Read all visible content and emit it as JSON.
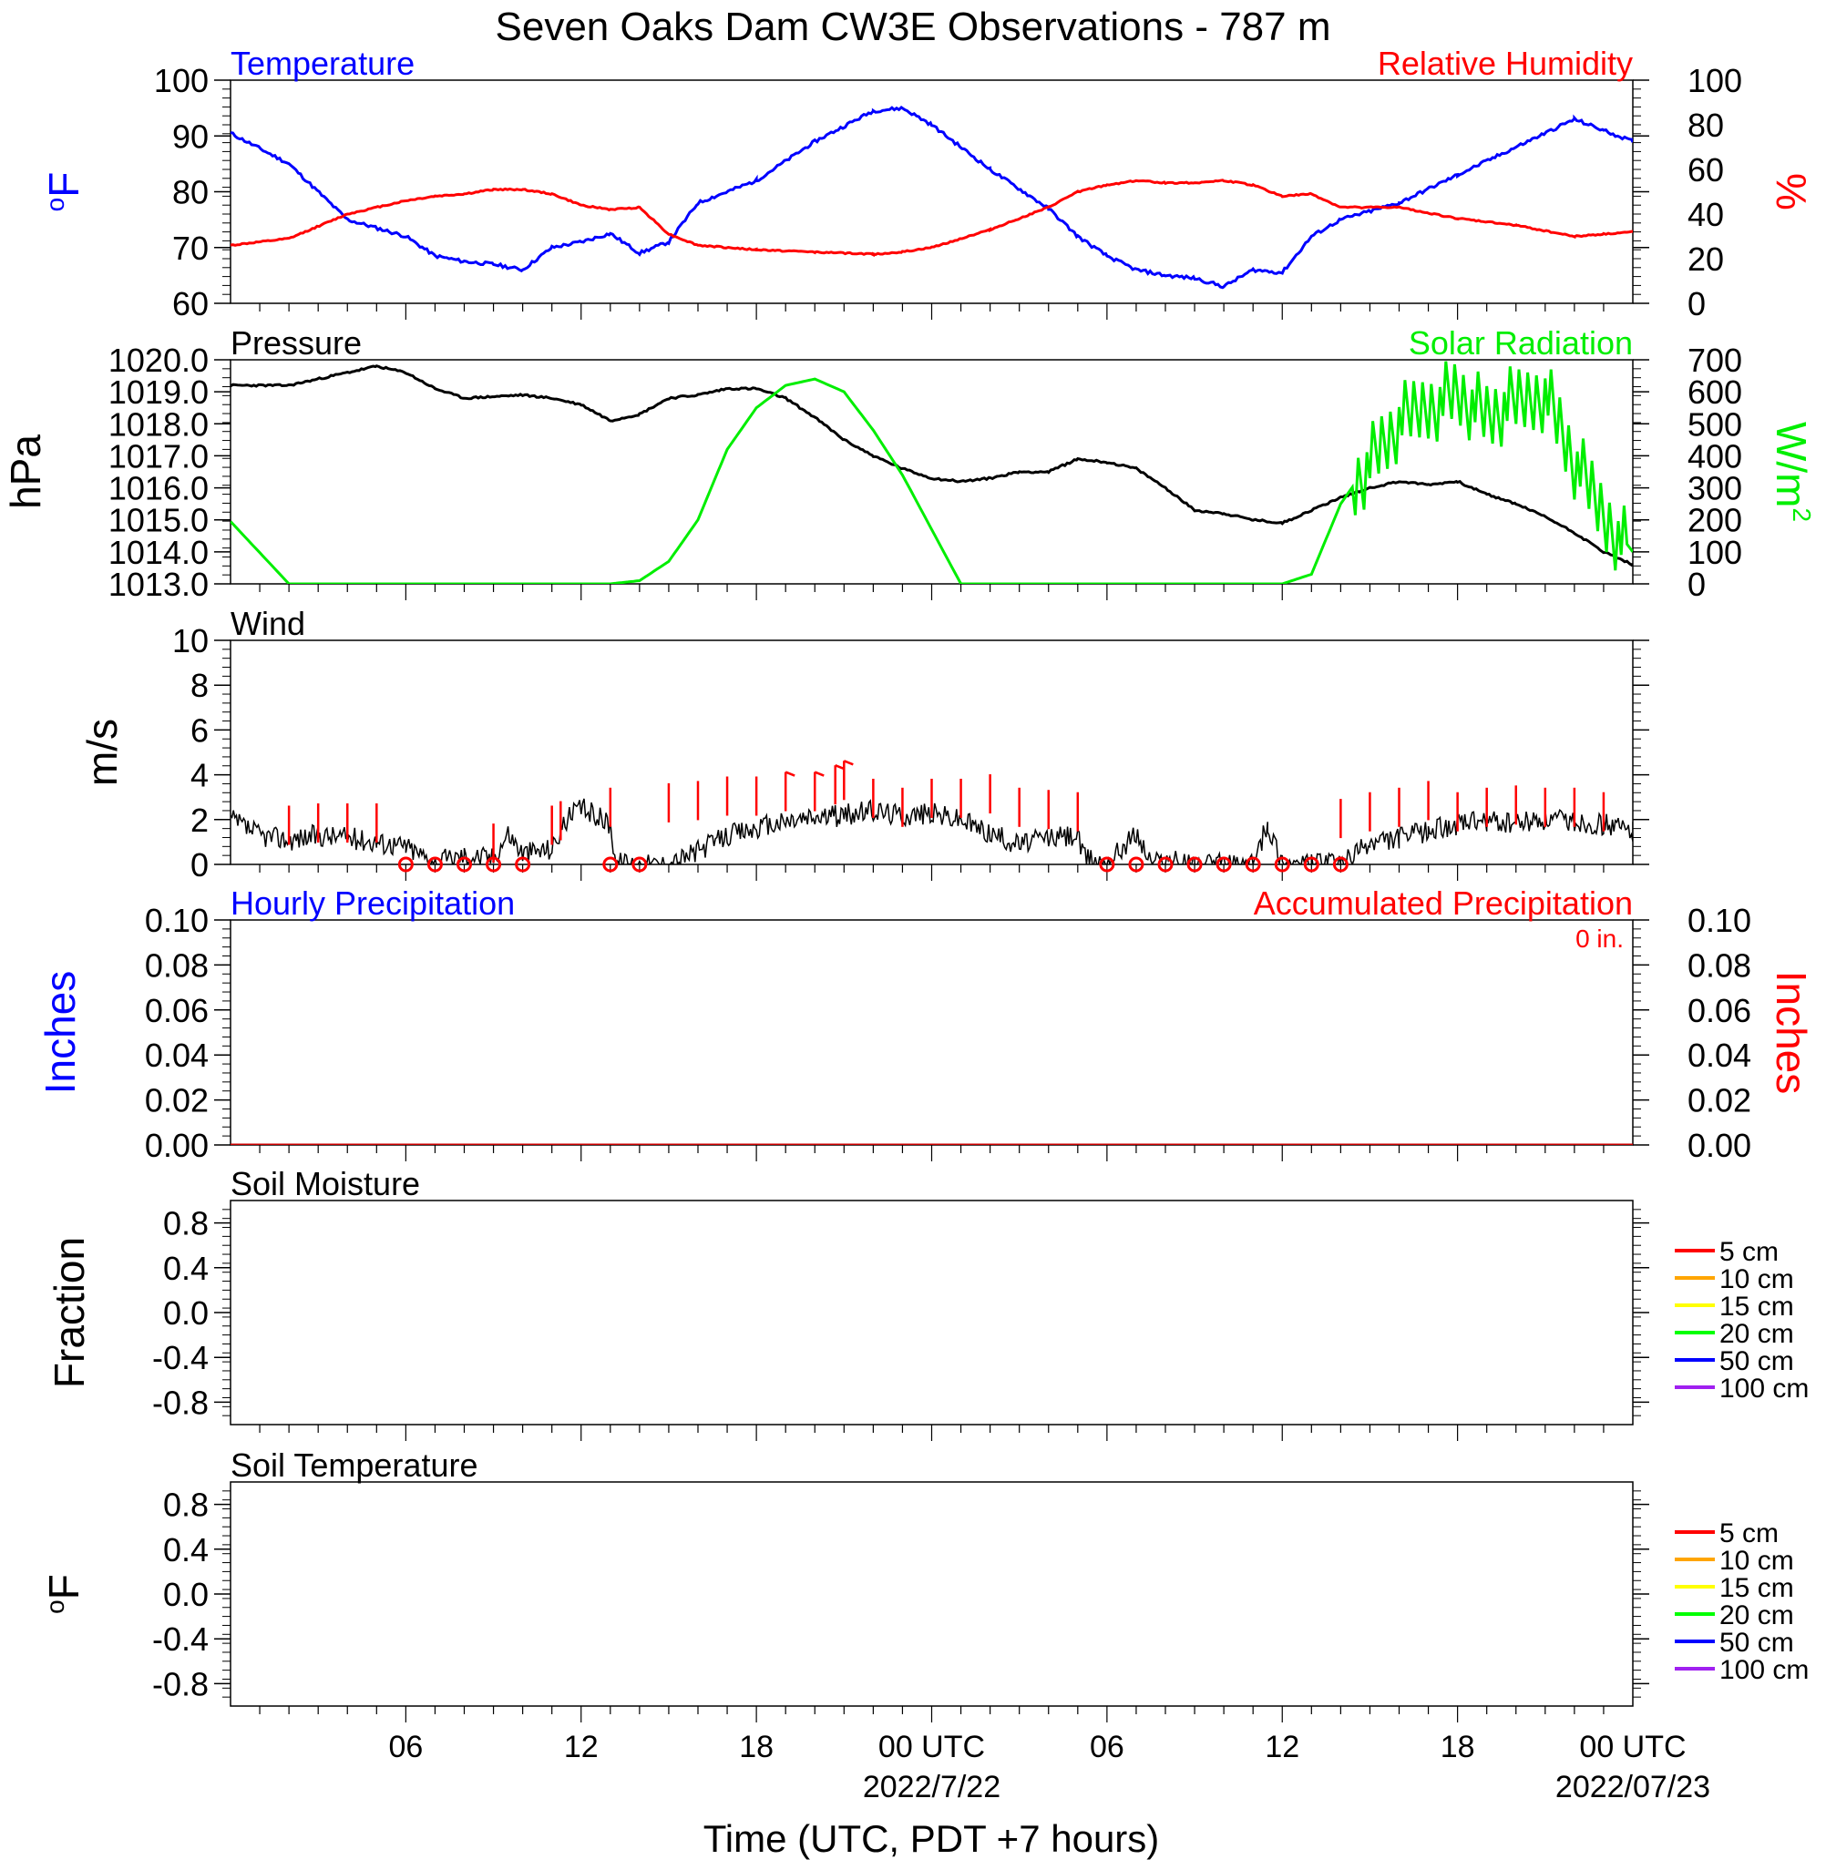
{
  "title": "Seven Oaks Dam CW3E Observations - 787 m",
  "xaxis": {
    "label": "Time (UTC, PDT +7 hours)",
    "tick_labels": [
      "06",
      "12",
      "18",
      "00 UTC",
      "06",
      "12",
      "18",
      "00 UTC"
    ],
    "date_labels": [
      "2022/7/22",
      "2022/07/23"
    ]
  },
  "colors": {
    "blue": "#0000ff",
    "red": "#ff0000",
    "green": "#00ee00",
    "black": "#000000"
  },
  "chart_data": [
    {
      "type": "line",
      "panel": "temperature_humidity",
      "left_title": "Temperature",
      "right_title": "Relative Humidity",
      "left_unit": "oF",
      "right_unit": "%",
      "ylim_left": [
        60,
        100
      ],
      "ylim_right": [
        0,
        100
      ],
      "left_ticks": [
        "60",
        "70",
        "80",
        "90",
        "100"
      ],
      "right_ticks": [
        "0",
        "20",
        "40",
        "60",
        "80",
        "100"
      ],
      "x_hours": [
        0,
        2,
        4,
        6,
        7,
        8,
        9,
        10,
        11,
        12,
        13,
        14,
        15,
        16,
        18,
        20,
        22,
        23,
        24,
        26,
        28,
        29,
        30,
        31,
        32,
        33,
        34,
        35,
        36,
        37,
        38,
        40,
        42,
        44,
        46,
        47,
        48
      ],
      "series": [
        {
          "name": "Temperature",
          "color": "#0000ff",
          "axis": "left",
          "values": [
            90.5,
            85,
            75,
            72,
            68.5,
            67.5,
            67,
            66,
            70,
            71,
            72.5,
            69,
            71,
            78,
            82,
            89,
            94.5,
            95,
            92,
            84,
            77,
            72,
            68.5,
            66,
            65,
            64.5,
            63,
            66,
            65.5,
            72,
            75,
            78,
            83,
            88,
            93,
            91,
            89
          ]
        },
        {
          "name": "Relative Humidity",
          "color": "#ff0000",
          "axis": "right",
          "values": [
            26,
            29,
            40,
            46,
            48,
            49,
            51,
            51,
            49,
            44,
            42,
            43,
            31,
            26,
            24,
            23,
            22,
            23,
            25,
            33,
            43,
            50,
            53,
            55,
            54,
            54,
            55,
            53,
            48,
            49,
            43,
            43,
            38,
            35,
            30,
            31,
            32
          ]
        }
      ]
    },
    {
      "type": "line",
      "panel": "pressure_solar",
      "left_title": "Pressure",
      "right_title": "Solar Radiation",
      "left_unit": "hPa",
      "right_unit": "W/m2",
      "ylim_left": [
        1013.0,
        1020.0
      ],
      "ylim_right": [
        0,
        700
      ],
      "left_ticks": [
        "1013.0",
        "1014.0",
        "1015.0",
        "1016.0",
        "1017.0",
        "1018.0",
        "1019.0",
        "1020.0"
      ],
      "right_ticks": [
        "0",
        "100",
        "200",
        "300",
        "400",
        "500",
        "600",
        "700"
      ],
      "x_hours": [
        0,
        2,
        4,
        5,
        6,
        7,
        8,
        10,
        11,
        12,
        13,
        14,
        15,
        16,
        17,
        18,
        19,
        20,
        21,
        22,
        23,
        24,
        25,
        26,
        27,
        28,
        29,
        30,
        31,
        32,
        33,
        34,
        35,
        36,
        37,
        38,
        39,
        40,
        41,
        42,
        43,
        44,
        45,
        46,
        47,
        48
      ],
      "series": [
        {
          "name": "Pressure",
          "color": "#000000",
          "axis": "left",
          "values": [
            1019.2,
            1019.2,
            1019.6,
            1019.8,
            1019.6,
            1019.1,
            1018.8,
            1018.9,
            1018.8,
            1018.6,
            1018.1,
            1018.3,
            1018.8,
            1018.9,
            1019.1,
            1019.1,
            1018.8,
            1018.2,
            1017.5,
            1017.0,
            1016.6,
            1016.3,
            1016.2,
            1016.3,
            1016.5,
            1016.5,
            1016.9,
            1016.8,
            1016.6,
            1016.0,
            1015.3,
            1015.2,
            1015.0,
            1014.9,
            1015.3,
            1015.7,
            1016.0,
            1016.2,
            1016.1,
            1016.2,
            1015.8,
            1015.5,
            1015.1,
            1014.6,
            1014.0,
            1013.6
          ]
        },
        {
          "name": "Solar Radiation",
          "color": "#00ee00",
          "axis": "right",
          "values": [
            195,
            0,
            0,
            0,
            0,
            0,
            0,
            0,
            0,
            0,
            0,
            10,
            70,
            200,
            420,
            550,
            620,
            640,
            600,
            480,
            340,
            170,
            0,
            0,
            0,
            0,
            0,
            0,
            0,
            0,
            0,
            0,
            0,
            0,
            30,
            250,
            380,
            500,
            560,
            600,
            520,
            560,
            600,
            380,
            220,
            100
          ]
        }
      ]
    },
    {
      "type": "line",
      "panel": "wind",
      "left_title": "Wind",
      "left_unit": "m/s",
      "ylim": [
        0,
        10
      ],
      "left_ticks": [
        "0",
        "2",
        "4",
        "6",
        "8",
        "10"
      ],
      "x_hours": [
        0,
        1,
        2,
        3,
        4,
        5,
        5.5,
        6,
        7,
        8,
        9,
        9.5,
        10,
        11,
        11.5,
        12,
        12.5,
        13,
        13.2,
        14,
        15,
        16,
        17,
        18,
        19,
        20,
        21,
        22,
        23,
        24,
        25,
        26,
        27,
        28,
        29,
        29.2,
        30,
        31,
        31.5,
        32,
        33,
        34,
        35,
        35.5,
        36,
        37,
        38,
        39,
        40,
        41,
        42,
        43,
        44,
        45,
        46,
        47,
        48
      ],
      "series": [
        {
          "name": "Wind",
          "color": "#000000",
          "values": [
            2.0,
            1.3,
            1.1,
            1.3,
            1.2,
            1.0,
            0.9,
            0.8,
            0.1,
            0.4,
            0.3,
            1.4,
            0.5,
            0.7,
            2.0,
            2.5,
            2.2,
            1.8,
            0.1,
            0.0,
            0.0,
            0.6,
            1.3,
            1.6,
            1.9,
            2.1,
            2.2,
            2.4,
            2.2,
            2.3,
            2.0,
            1.4,
            0.9,
            1.2,
            1.3,
            0.3,
            0.1,
            1.4,
            0.1,
            0.2,
            0.0,
            0.0,
            0.0,
            1.8,
            0.1,
            0.0,
            0.0,
            0.9,
            1.2,
            1.5,
            1.8,
            1.9,
            1.8,
            2.0,
            1.9,
            1.8,
            1.5
          ]
        }
      ],
      "barbs_x_hours": [
        2,
        3,
        4,
        5,
        9,
        11,
        11.3,
        13,
        15,
        16,
        17,
        18,
        19,
        20,
        20.7,
        21,
        22,
        23,
        24,
        25,
        26,
        27,
        28,
        29,
        38,
        39,
        40,
        41,
        42,
        43,
        44,
        45,
        46,
        47
      ],
      "barbs_values": [
        1.2,
        1.3,
        1.3,
        1.3,
        0.4,
        1.2,
        1.4,
        2.0,
        2.2,
        2.3,
        2.5,
        2.5,
        2.7,
        2.7,
        3.0,
        3.2,
        2.4,
        2.0,
        2.4,
        2.4,
        2.6,
        2.0,
        1.9,
        1.8,
        1.5,
        1.8,
        2.0,
        2.3,
        1.8,
        2.0,
        2.1,
        2.0,
        2.0,
        1.8
      ],
      "calm_x_hours": [
        6,
        7,
        8,
        9,
        10,
        13,
        14,
        30,
        31,
        32,
        33,
        34,
        35,
        36,
        37,
        38
      ]
    },
    {
      "type": "line",
      "panel": "precipitation",
      "left_title": "Hourly Precipitation",
      "right_title": "Accumulated Precipitation",
      "accum_label": "0 in.",
      "left_unit": "Inches",
      "right_unit": "Inches",
      "ylim": [
        0,
        0.1
      ],
      "left_ticks": [
        "0.00",
        "0.02",
        "0.04",
        "0.06",
        "0.08",
        "0.10"
      ],
      "right_ticks": [
        "0.00",
        "0.02",
        "0.04",
        "0.06",
        "0.08",
        "0.10"
      ],
      "x_hours": [
        0,
        48
      ],
      "series": [
        {
          "name": "Accumulated Precipitation",
          "color": "#cc0000",
          "values": [
            0,
            0
          ]
        }
      ]
    },
    {
      "type": "line",
      "panel": "soil_moisture",
      "left_title": "Soil Moisture",
      "left_unit": "Fraction",
      "ylim": [
        -1,
        1
      ],
      "left_ticks": [
        "-0.8",
        "-0.4",
        "0.0",
        "0.4",
        "0.8"
      ],
      "legend": [
        {
          "name": "5 cm",
          "color": "#ff0000"
        },
        {
          "name": "10 cm",
          "color": "#ffa500"
        },
        {
          "name": "15 cm",
          "color": "#ffff00"
        },
        {
          "name": "20 cm",
          "color": "#00ff00"
        },
        {
          "name": "50 cm",
          "color": "#0000ff"
        },
        {
          "name": "100 cm",
          "color": "#a020f0"
        }
      ]
    },
    {
      "type": "line",
      "panel": "soil_temperature",
      "left_title": "Soil Temperature",
      "left_unit": "oF",
      "ylim": [
        -1,
        1
      ],
      "left_ticks": [
        "-0.8",
        "-0.4",
        "0.0",
        "0.4",
        "0.8"
      ],
      "legend": [
        {
          "name": "5 cm",
          "color": "#ff0000"
        },
        {
          "name": "10 cm",
          "color": "#ffa500"
        },
        {
          "name": "15 cm",
          "color": "#ffff00"
        },
        {
          "name": "20 cm",
          "color": "#00ff00"
        },
        {
          "name": "50 cm",
          "color": "#0000ff"
        },
        {
          "name": "100 cm",
          "color": "#a020f0"
        }
      ]
    }
  ]
}
